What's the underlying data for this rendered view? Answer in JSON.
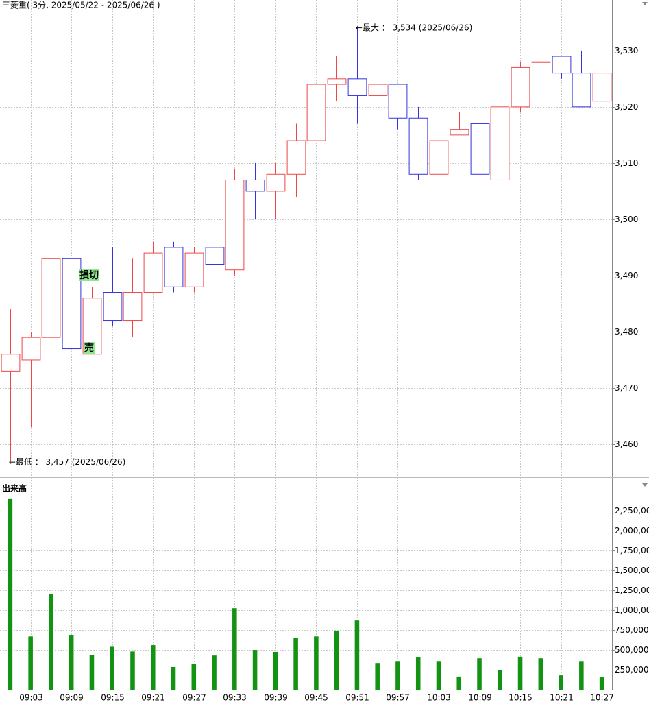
{
  "chart_data": [
    {
      "type": "candlestick",
      "title": "三菱重( 3分, 2025/05/22 - 2025/06/26 )",
      "categories": [
        null,
        "09:03",
        null,
        "09:09",
        null,
        "09:15",
        null,
        "09:21",
        null,
        "09:27",
        null,
        "09:33",
        null,
        "09:39",
        null,
        "09:45",
        null,
        "09:51",
        null,
        "09:57",
        null,
        "10:03",
        null,
        "10:09",
        null,
        "10:15",
        null,
        "10:21",
        null,
        "10:27"
      ],
      "open": [
        3473,
        3475,
        3479,
        3493,
        3476,
        3487,
        3482,
        3487,
        3495,
        3488,
        3495,
        3491,
        3507,
        3505,
        3508,
        3514,
        3524,
        3525,
        3522,
        3524,
        3518,
        3508,
        3515,
        3517,
        3507,
        3520,
        3528,
        3529,
        3526,
        3521
      ],
      "high": [
        3484,
        3480,
        3494,
        3493,
        3488,
        3495,
        3493,
        3496,
        3496,
        3495,
        3497,
        3509,
        3510,
        3510,
        3517,
        3524,
        3529,
        3534,
        3527,
        3524,
        3520,
        3519,
        3519,
        3517,
        3520,
        3528,
        3530,
        3529,
        3530,
        3526
      ],
      "low": [
        3457,
        3463,
        3474,
        3477,
        3476,
        3481,
        3479,
        3487,
        3487,
        3487,
        3489,
        3490,
        3500,
        3500,
        3504,
        3514,
        3521,
        3517,
        3520,
        3516,
        3507,
        3508,
        3515,
        3504,
        3507,
        3519,
        3523,
        3525,
        3520,
        3520
      ],
      "close": [
        3476,
        3479,
        3493,
        3477,
        3486,
        3482,
        3487,
        3494,
        3488,
        3494,
        3492,
        3507,
        3505,
        3508,
        3514,
        3524,
        3525,
        3522,
        3524,
        3518,
        3508,
        3514,
        3516,
        3508,
        3520,
        3527,
        3528,
        3526,
        3520,
        3526
      ],
      "up_color": "#f04848",
      "down_color": "#3434e0",
      "ylim": [
        3455,
        3539
      ],
      "yticks": [
        {
          "value": 3460,
          "label": "3,460"
        },
        {
          "value": 3470,
          "label": "3,470"
        },
        {
          "value": 3480,
          "label": "3,480"
        },
        {
          "value": 3490,
          "label": "3,490"
        },
        {
          "value": 3500,
          "label": "3,500"
        },
        {
          "value": 3510,
          "label": "3,510"
        },
        {
          "value": 3520,
          "label": "3,520"
        },
        {
          "value": 3530,
          "label": "3,530"
        }
      ],
      "grid": true,
      "max_annotation": "←最大 ： 3,534 (2025/06/26)",
      "min_annotation": "←最低 ： 3,457 (2025/06/26)",
      "markers": [
        "損切",
        "売"
      ]
    },
    {
      "type": "bar",
      "title": "出来高",
      "values": [
        2400000,
        670000,
        1200000,
        690000,
        440000,
        540000,
        480000,
        560000,
        285000,
        320000,
        430000,
        1025000,
        500000,
        475000,
        655000,
        670000,
        735000,
        870000,
        335000,
        360000,
        405000,
        360000,
        165000,
        395000,
        250000,
        415000,
        395000,
        180000,
        360000,
        155000
      ],
      "color": "#129312",
      "ylim": [
        0,
        2640000
      ],
      "yticks": [
        {
          "value": 250000,
          "label": "250,000"
        },
        {
          "value": 500000,
          "label": "500,000"
        },
        {
          "value": 750000,
          "label": "750,000"
        },
        {
          "value": 1000000,
          "label": "1,000,000"
        },
        {
          "value": 1250000,
          "label": "1,250,000"
        },
        {
          "value": 1500000,
          "label": "1,500,000"
        },
        {
          "value": 1750000,
          "label": "1,750,000"
        },
        {
          "value": 2000000,
          "label": "2,000,000"
        },
        {
          "value": 2250000,
          "label": "2,250,000"
        }
      ],
      "grid": true
    }
  ]
}
